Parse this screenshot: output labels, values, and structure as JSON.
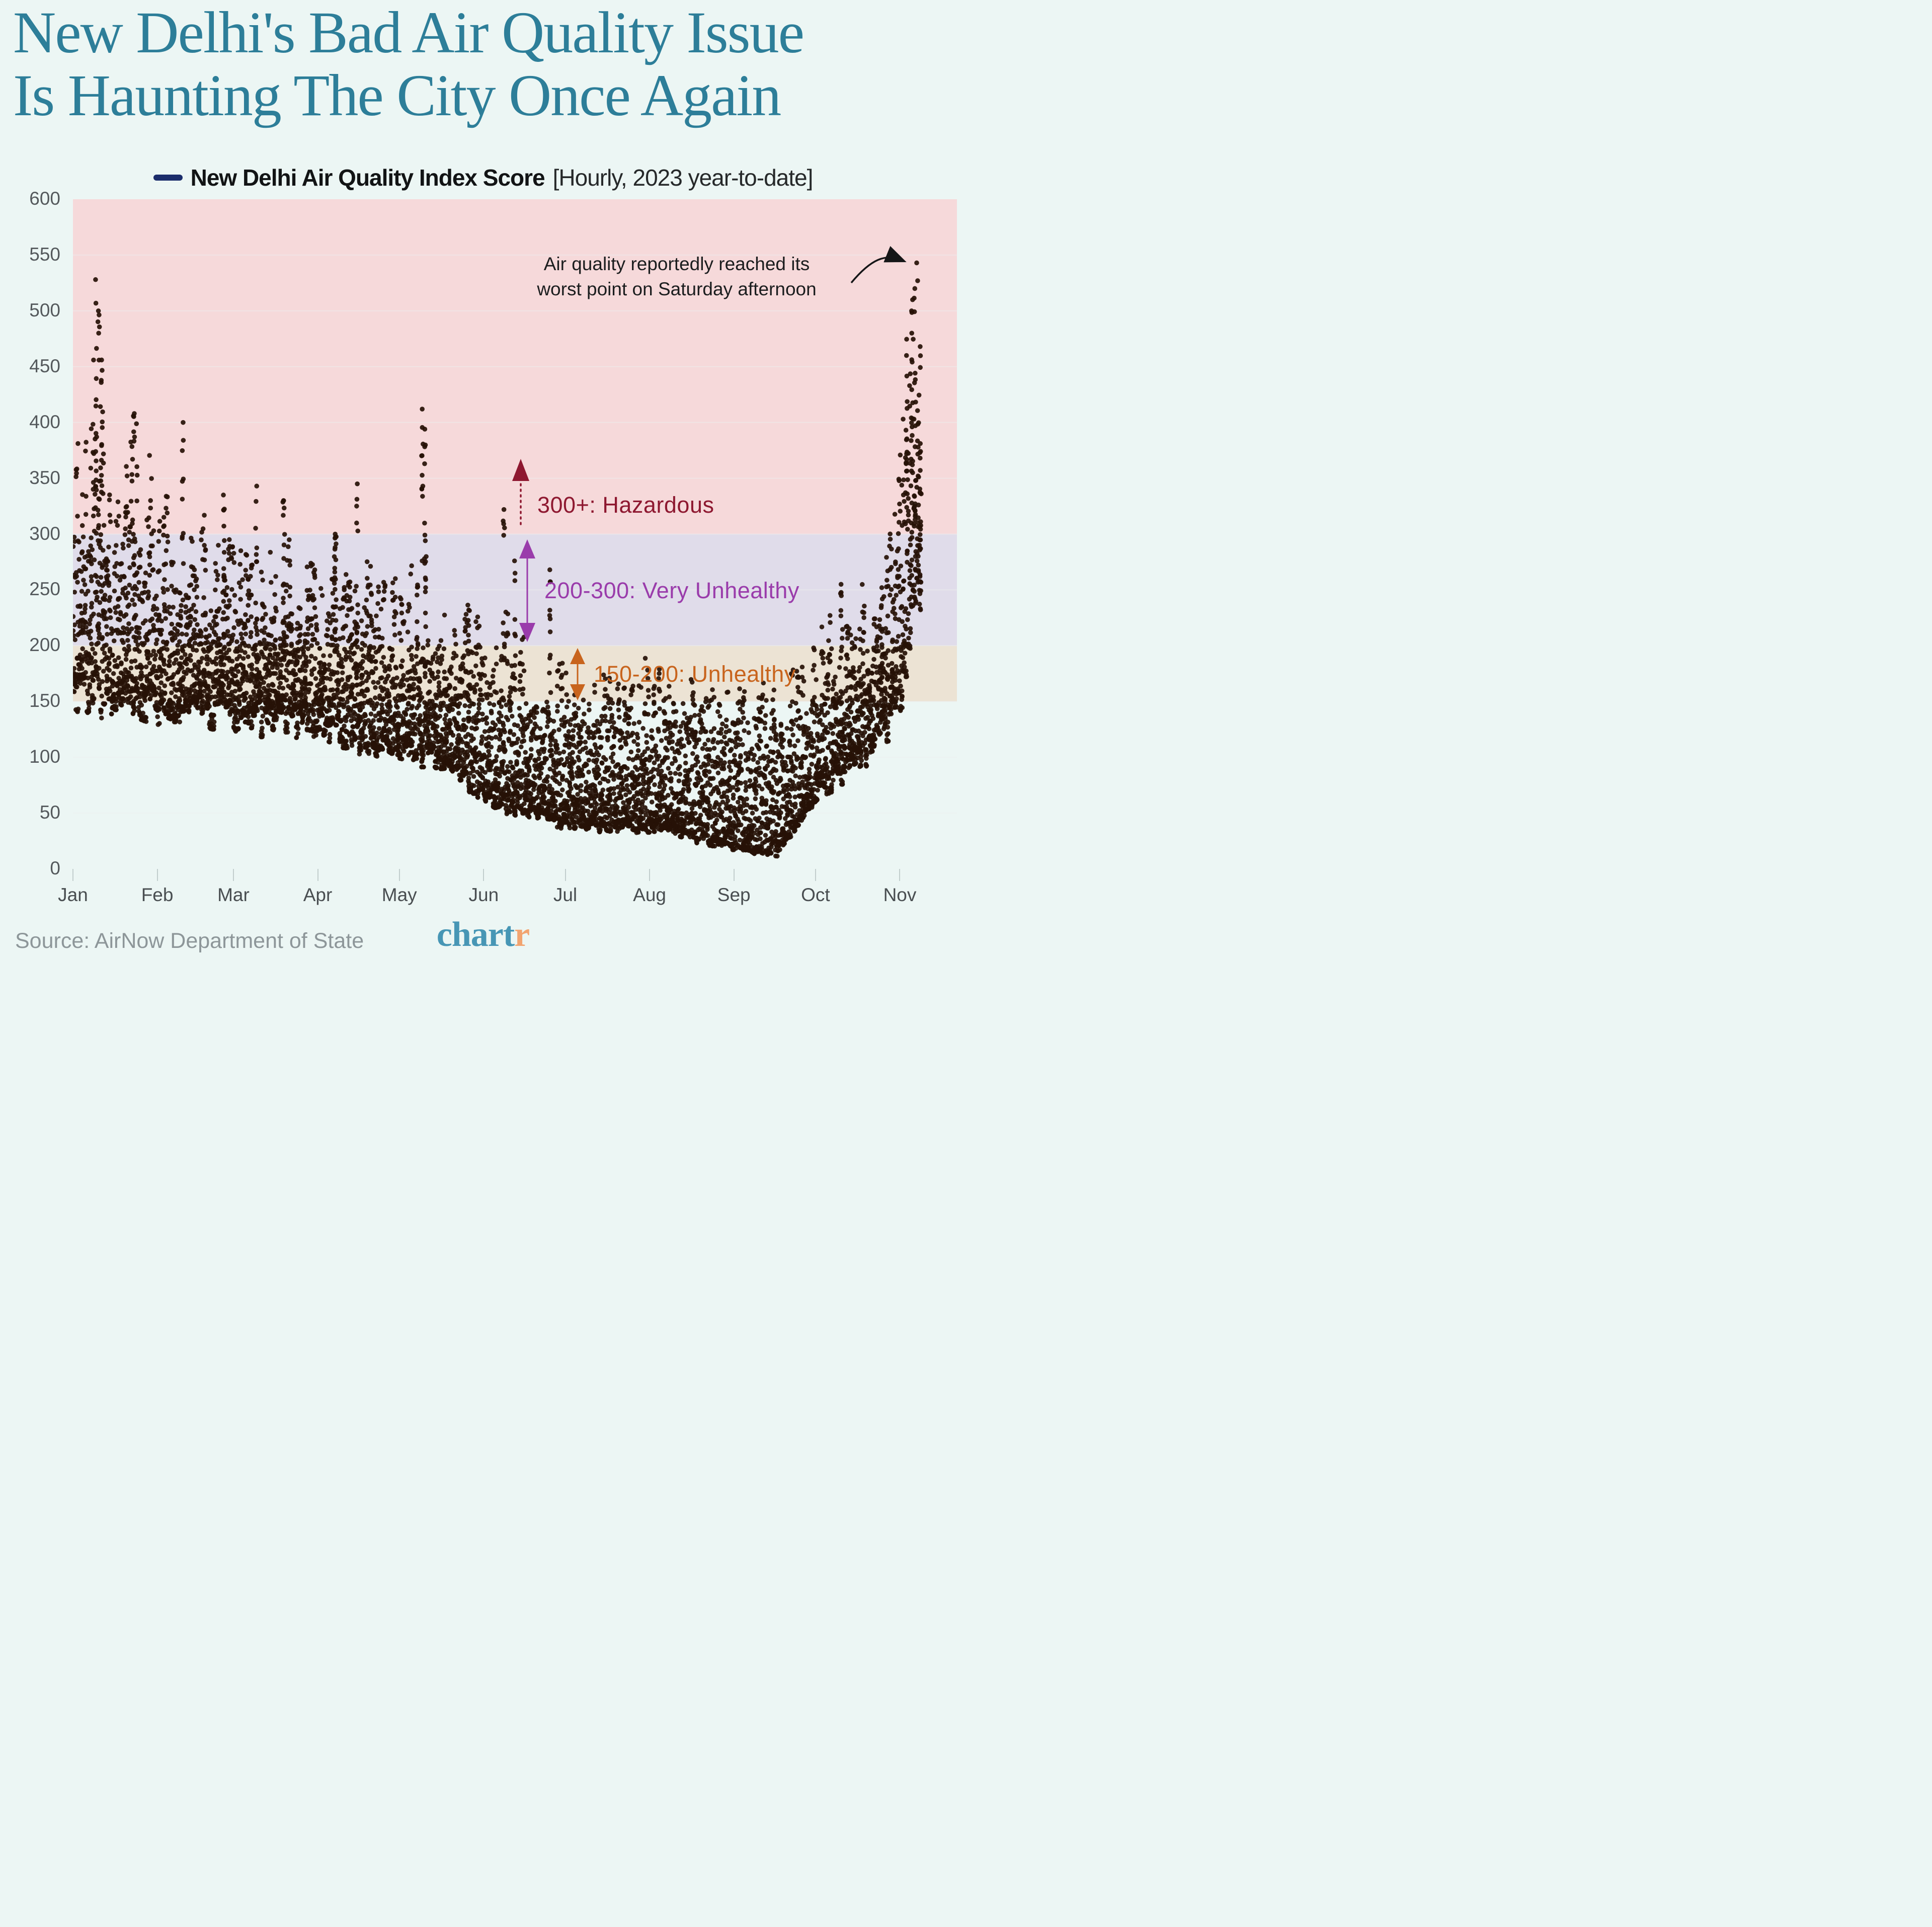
{
  "header": {
    "title_line1": "New Delhi's Bad Air Quality Issue",
    "title_line2": "Is Haunting The City Once Again",
    "title_color": "#2d7e99"
  },
  "legend": {
    "swatch_color": "#1b2d6b",
    "series_label": "New Delhi Air Quality Index Score",
    "series_note": "[Hourly, 2023 year-to-date]"
  },
  "chart_data": {
    "type": "scatter",
    "title": "New Delhi Air Quality Index Score, hourly, 2023 year-to-date",
    "xlabel": "",
    "ylabel": "AQI score",
    "ylim": [
      0,
      600
    ],
    "yticks": [
      0,
      50,
      100,
      150,
      200,
      250,
      300,
      350,
      400,
      450,
      500,
      550,
      600
    ],
    "months": [
      "Jan",
      "Feb",
      "Mar",
      "Apr",
      "May",
      "Jun",
      "Jul",
      "Aug",
      "Sep",
      "Oct",
      "Nov"
    ],
    "month_start_day": [
      0,
      31,
      59,
      90,
      120,
      151,
      181,
      212,
      243,
      273,
      304
    ],
    "days_plotted": 312,
    "x_domain_days": 325,
    "points_per_day": 24,
    "point_color": "#261107",
    "grid": true,
    "bands": [
      {
        "range": [
          300,
          600
        ],
        "label": "300+: Hazardous",
        "color": "#f6d9da",
        "label_color": "#8e1830"
      },
      {
        "range": [
          200,
          300
        ],
        "label": "200-300: Very Unhealthy",
        "color": "#e0dcea",
        "label_color": "#9a3cab"
      },
      {
        "range": [
          150,
          200
        ],
        "label": "150-200: Unhealthy",
        "color": "#ece3d4",
        "label_color": "#c8641d"
      }
    ],
    "envelope_lo": [
      [
        0,
        155
      ],
      [
        15,
        150
      ],
      [
        31,
        145
      ],
      [
        59,
        138
      ],
      [
        90,
        125
      ],
      [
        120,
        105
      ],
      [
        140,
        90
      ],
      [
        151,
        62
      ],
      [
        166,
        50
      ],
      [
        181,
        38
      ],
      [
        212,
        36
      ],
      [
        243,
        18
      ],
      [
        258,
        12
      ],
      [
        273,
        65
      ],
      [
        288,
        95
      ],
      [
        300,
        130
      ],
      [
        304,
        150
      ],
      [
        308,
        210
      ],
      [
        311,
        255
      ]
    ],
    "envelope_hi": [
      [
        0,
        370
      ],
      [
        8,
        430
      ],
      [
        12,
        310
      ],
      [
        22,
        360
      ],
      [
        31,
        310
      ],
      [
        40,
        265
      ],
      [
        53,
        295
      ],
      [
        59,
        250
      ],
      [
        70,
        275
      ],
      [
        80,
        260
      ],
      [
        90,
        250
      ],
      [
        104,
        265
      ],
      [
        120,
        235
      ],
      [
        128,
        250
      ],
      [
        140,
        215
      ],
      [
        151,
        235
      ],
      [
        158,
        200
      ],
      [
        166,
        185
      ],
      [
        181,
        170
      ],
      [
        200,
        165
      ],
      [
        212,
        162
      ],
      [
        228,
        150
      ],
      [
        243,
        152
      ],
      [
        258,
        140
      ],
      [
        273,
        190
      ],
      [
        285,
        215
      ],
      [
        295,
        235
      ],
      [
        300,
        290
      ],
      [
        304,
        390
      ],
      [
        307,
        470
      ],
      [
        309,
        530
      ],
      [
        311,
        480
      ]
    ],
    "spike_days": [
      [
        8,
        528
      ],
      [
        9,
        500
      ],
      [
        10,
        456
      ],
      [
        22,
        408
      ],
      [
        40,
        400
      ],
      [
        55,
        335
      ],
      [
        67,
        343
      ],
      [
        77,
        330
      ],
      [
        96,
        300
      ],
      [
        104,
        345
      ],
      [
        128,
        412
      ],
      [
        129,
        394
      ],
      [
        145,
        232
      ],
      [
        158,
        322
      ],
      [
        162,
        276
      ],
      [
        175,
        268
      ],
      [
        282,
        255
      ],
      [
        297,
        252
      ],
      [
        306,
        460
      ],
      [
        308,
        500
      ],
      [
        309,
        520
      ],
      [
        311,
        468
      ]
    ],
    "max_points": [
      [
        310.2,
        543
      ],
      [
        310.55,
        527
      ]
    ],
    "seed": 42
  },
  "annotation": {
    "line1": "Air quality reportedly reached its",
    "line2": "worst point on Saturday afternoon",
    "arrow_color": "#151617"
  },
  "footer": {
    "source": "Source: AirNow Department of State",
    "logo_main": "chart",
    "logo_accent": "r",
    "logo_main_color": "#4796b5",
    "logo_accent_color": "#f2a470"
  }
}
